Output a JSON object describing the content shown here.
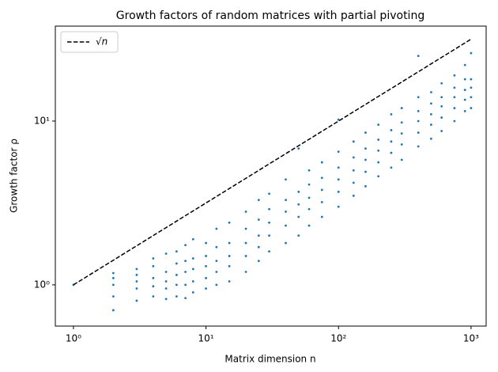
{
  "chart_data": {
    "type": "scatter",
    "title": "Growth factors of random matrices with partial pivoting",
    "x_label": "Matrix dimension n",
    "y_label": "Growth factor ρ",
    "xscale": "log",
    "yscale": "log",
    "xlim": [
      0.73,
      1300
    ],
    "ylim": [
      0.56,
      38
    ],
    "xticks": [
      {
        "value": 1,
        "label": "10⁰"
      },
      {
        "value": 10,
        "label": "10¹"
      },
      {
        "value": 100,
        "label": "10²"
      },
      {
        "value": 1000,
        "label": "10³"
      }
    ],
    "yticks": [
      {
        "value": 1,
        "label": "10⁰"
      },
      {
        "value": 10,
        "label": "10¹"
      }
    ],
    "legend_loc": "upper left",
    "line": {
      "name": "√n",
      "color": "#000000",
      "x": [
        1,
        1000
      ],
      "y": [
        1,
        31.62
      ]
    },
    "points": {
      "color": "#1f77b4",
      "x": [
        1,
        2,
        2,
        2,
        2,
        2,
        3,
        3,
        3,
        3,
        3,
        4,
        4,
        4,
        4,
        4,
        5,
        5,
        5,
        5,
        5,
        6,
        6,
        6,
        6,
        6,
        7,
        7,
        7,
        7,
        7,
        8,
        8,
        8,
        8,
        8,
        10,
        10,
        10,
        10,
        10,
        12,
        12,
        12,
        12,
        12,
        15,
        15,
        15,
        15,
        15,
        20,
        20,
        20,
        20,
        20,
        25,
        25,
        25,
        25,
        25,
        30,
        30,
        30,
        30,
        30,
        40,
        40,
        40,
        40,
        40,
        50,
        50,
        50,
        50,
        50,
        60,
        60,
        60,
        60,
        60,
        75,
        75,
        75,
        75,
        75,
        100,
        100,
        100,
        100,
        100,
        100,
        130,
        130,
        130,
        130,
        130,
        160,
        160,
        160,
        160,
        160,
        200,
        200,
        200,
        200,
        200,
        250,
        250,
        250,
        250,
        250,
        300,
        300,
        300,
        300,
        300,
        400,
        400,
        400,
        400,
        400,
        400,
        500,
        500,
        500,
        500,
        500,
        600,
        600,
        600,
        600,
        600,
        750,
        750,
        750,
        750,
        750,
        900,
        900,
        900,
        900,
        900,
        1000,
        1000,
        1000,
        1000,
        1000
      ],
      "y": [
        1.0,
        0.7,
        0.85,
        1.0,
        1.1,
        1.18,
        0.8,
        0.95,
        1.05,
        1.15,
        1.25,
        0.85,
        0.98,
        1.1,
        1.3,
        1.45,
        0.82,
        0.95,
        1.05,
        1.2,
        1.55,
        0.85,
        1.0,
        1.15,
        1.35,
        1.6,
        0.83,
        1.0,
        1.2,
        1.4,
        1.75,
        0.9,
        1.05,
        1.25,
        1.45,
        1.9,
        0.95,
        1.1,
        1.3,
        1.5,
        1.8,
        1.0,
        1.2,
        1.4,
        1.7,
        2.2,
        1.05,
        1.3,
        1.5,
        1.8,
        2.4,
        1.2,
        1.5,
        1.8,
        2.2,
        2.8,
        1.4,
        1.7,
        2.0,
        2.5,
        3.3,
        1.6,
        2.0,
        2.4,
        2.9,
        3.6,
        1.8,
        2.3,
        2.8,
        3.3,
        4.4,
        2.0,
        2.6,
        3.1,
        3.7,
        6.8,
        2.3,
        2.9,
        3.4,
        4.1,
        5.0,
        2.6,
        3.2,
        3.8,
        4.5,
        5.6,
        3.0,
        3.7,
        4.4,
        5.2,
        6.5,
        10.2,
        3.5,
        4.2,
        5.0,
        6.0,
        7.5,
        4.0,
        4.9,
        5.8,
        6.8,
        8.5,
        4.6,
        5.6,
        6.6,
        7.7,
        9.5,
        5.2,
        6.4,
        7.5,
        8.8,
        11,
        5.8,
        7.2,
        8.4,
        9.8,
        12,
        7.0,
        8.5,
        10,
        11.5,
        14,
        25,
        7.8,
        9.5,
        11,
        12.8,
        15,
        8.7,
        10.5,
        12.3,
        14,
        17,
        10,
        12,
        14,
        16,
        19,
        11.5,
        13.5,
        15.5,
        18,
        22,
        12,
        14,
        16,
        18,
        26
      ]
    }
  }
}
